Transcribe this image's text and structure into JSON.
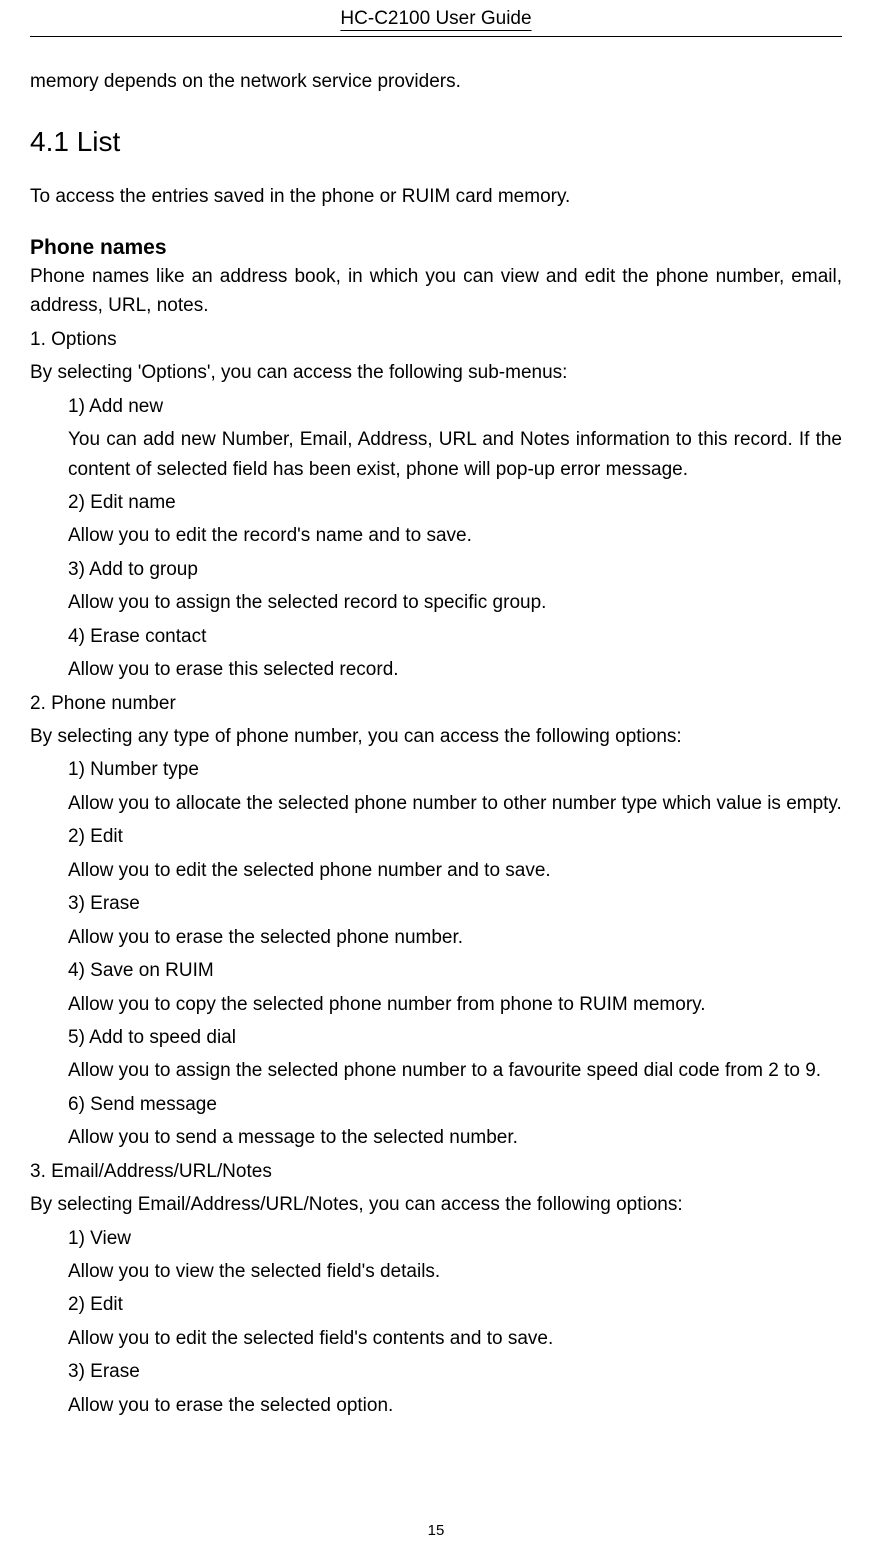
{
  "header": {
    "title": "HC-C2100 User Guide"
  },
  "intro_continuation": "memory depends on the network service providers.",
  "section": {
    "number_title": "4.1 List",
    "lead": "To access the entries saved in the phone or RUIM card memory."
  },
  "phone_names": {
    "heading": "Phone names",
    "desc": "Phone names like an address book, in which you can view and edit the phone number, email, address, URL, notes.",
    "items": [
      {
        "num": "1.    Options",
        "lead": "By selecting 'Options', you can access the following sub-menus:",
        "subs": [
          {
            "label": "1) Add new",
            "desc": "You can add new Number, Email, Address, URL and Notes information to this record. If the content of selected field has been exist, phone will pop-up error message."
          },
          {
            "label": "2) Edit name",
            "desc": "Allow you to edit the record's name and to save."
          },
          {
            "label": "3) Add to group",
            "desc": "Allow you to assign the selected record to specific group."
          },
          {
            "label": "4) Erase contact",
            "desc": "Allow you to erase this selected record."
          }
        ]
      },
      {
        "num": "2.    Phone number",
        "lead": "By selecting any type of phone number, you can access the following options:",
        "subs": [
          {
            "label": "1) Number type",
            "desc": "Allow you to allocate the selected phone number to other number type which value is empty."
          },
          {
            "label": "2) Edit",
            "desc": "Allow you to edit the selected phone number and to save."
          },
          {
            "label": "3) Erase",
            "desc": "Allow you to erase the selected phone number."
          },
          {
            "label": "4) Save on RUIM",
            "desc": "Allow you to copy the selected phone number from phone to RUIM memory."
          },
          {
            "label": "5) Add to speed dial",
            "desc": "Allow you to assign the selected phone number to a favourite speed dial code from 2 to 9."
          },
          {
            "label": "6) Send message",
            "desc": "Allow you to send a message to the selected number."
          }
        ]
      },
      {
        "num": "3.    Email/Address/URL/Notes",
        "lead": "By selecting Email/Address/URL/Notes, you can access the following options:",
        "subs": [
          {
            "label": "1) View",
            "desc": "Allow you to view the selected field's details."
          },
          {
            "label": "2) Edit",
            "desc": "Allow you to edit the selected field's contents and to save."
          },
          {
            "label": "3) Erase",
            "desc": "Allow you to erase the selected option."
          }
        ]
      }
    ]
  },
  "page_number": "15"
}
